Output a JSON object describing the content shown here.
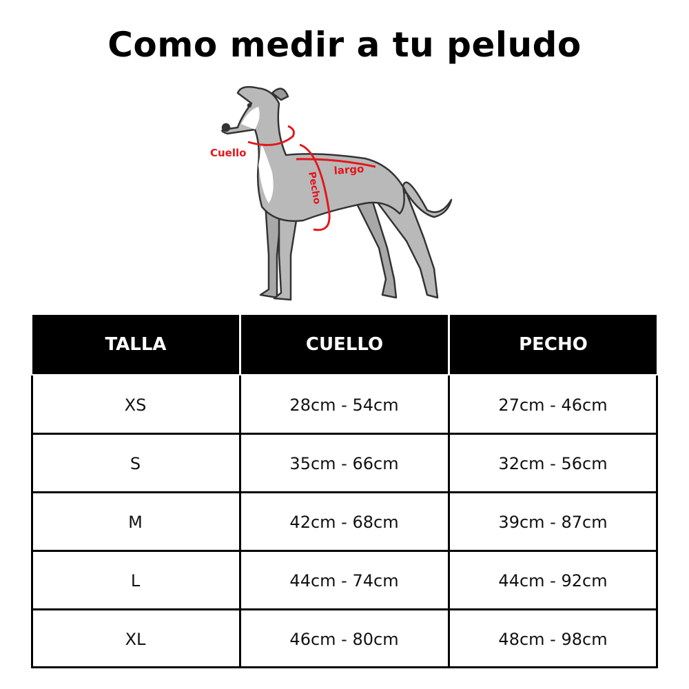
{
  "title": "Como medir a tu peludo",
  "illustration": {
    "labels": {
      "neck": "Cuello",
      "length": "largo",
      "chest": "Pecho"
    },
    "accent_color": "#e3161b"
  },
  "table": {
    "headers": [
      "TALLA",
      "CUELLO",
      "PECHO"
    ],
    "rows": [
      [
        "XS",
        "28cm - 54cm",
        "27cm - 46cm"
      ],
      [
        "S",
        "35cm - 66cm",
        "32cm - 56cm"
      ],
      [
        "M",
        "42cm - 68cm",
        "39cm - 87cm"
      ],
      [
        "L",
        "44cm - 74cm",
        "44cm - 92cm"
      ],
      [
        "XL",
        "46cm - 80cm",
        "48cm - 98cm"
      ]
    ]
  }
}
